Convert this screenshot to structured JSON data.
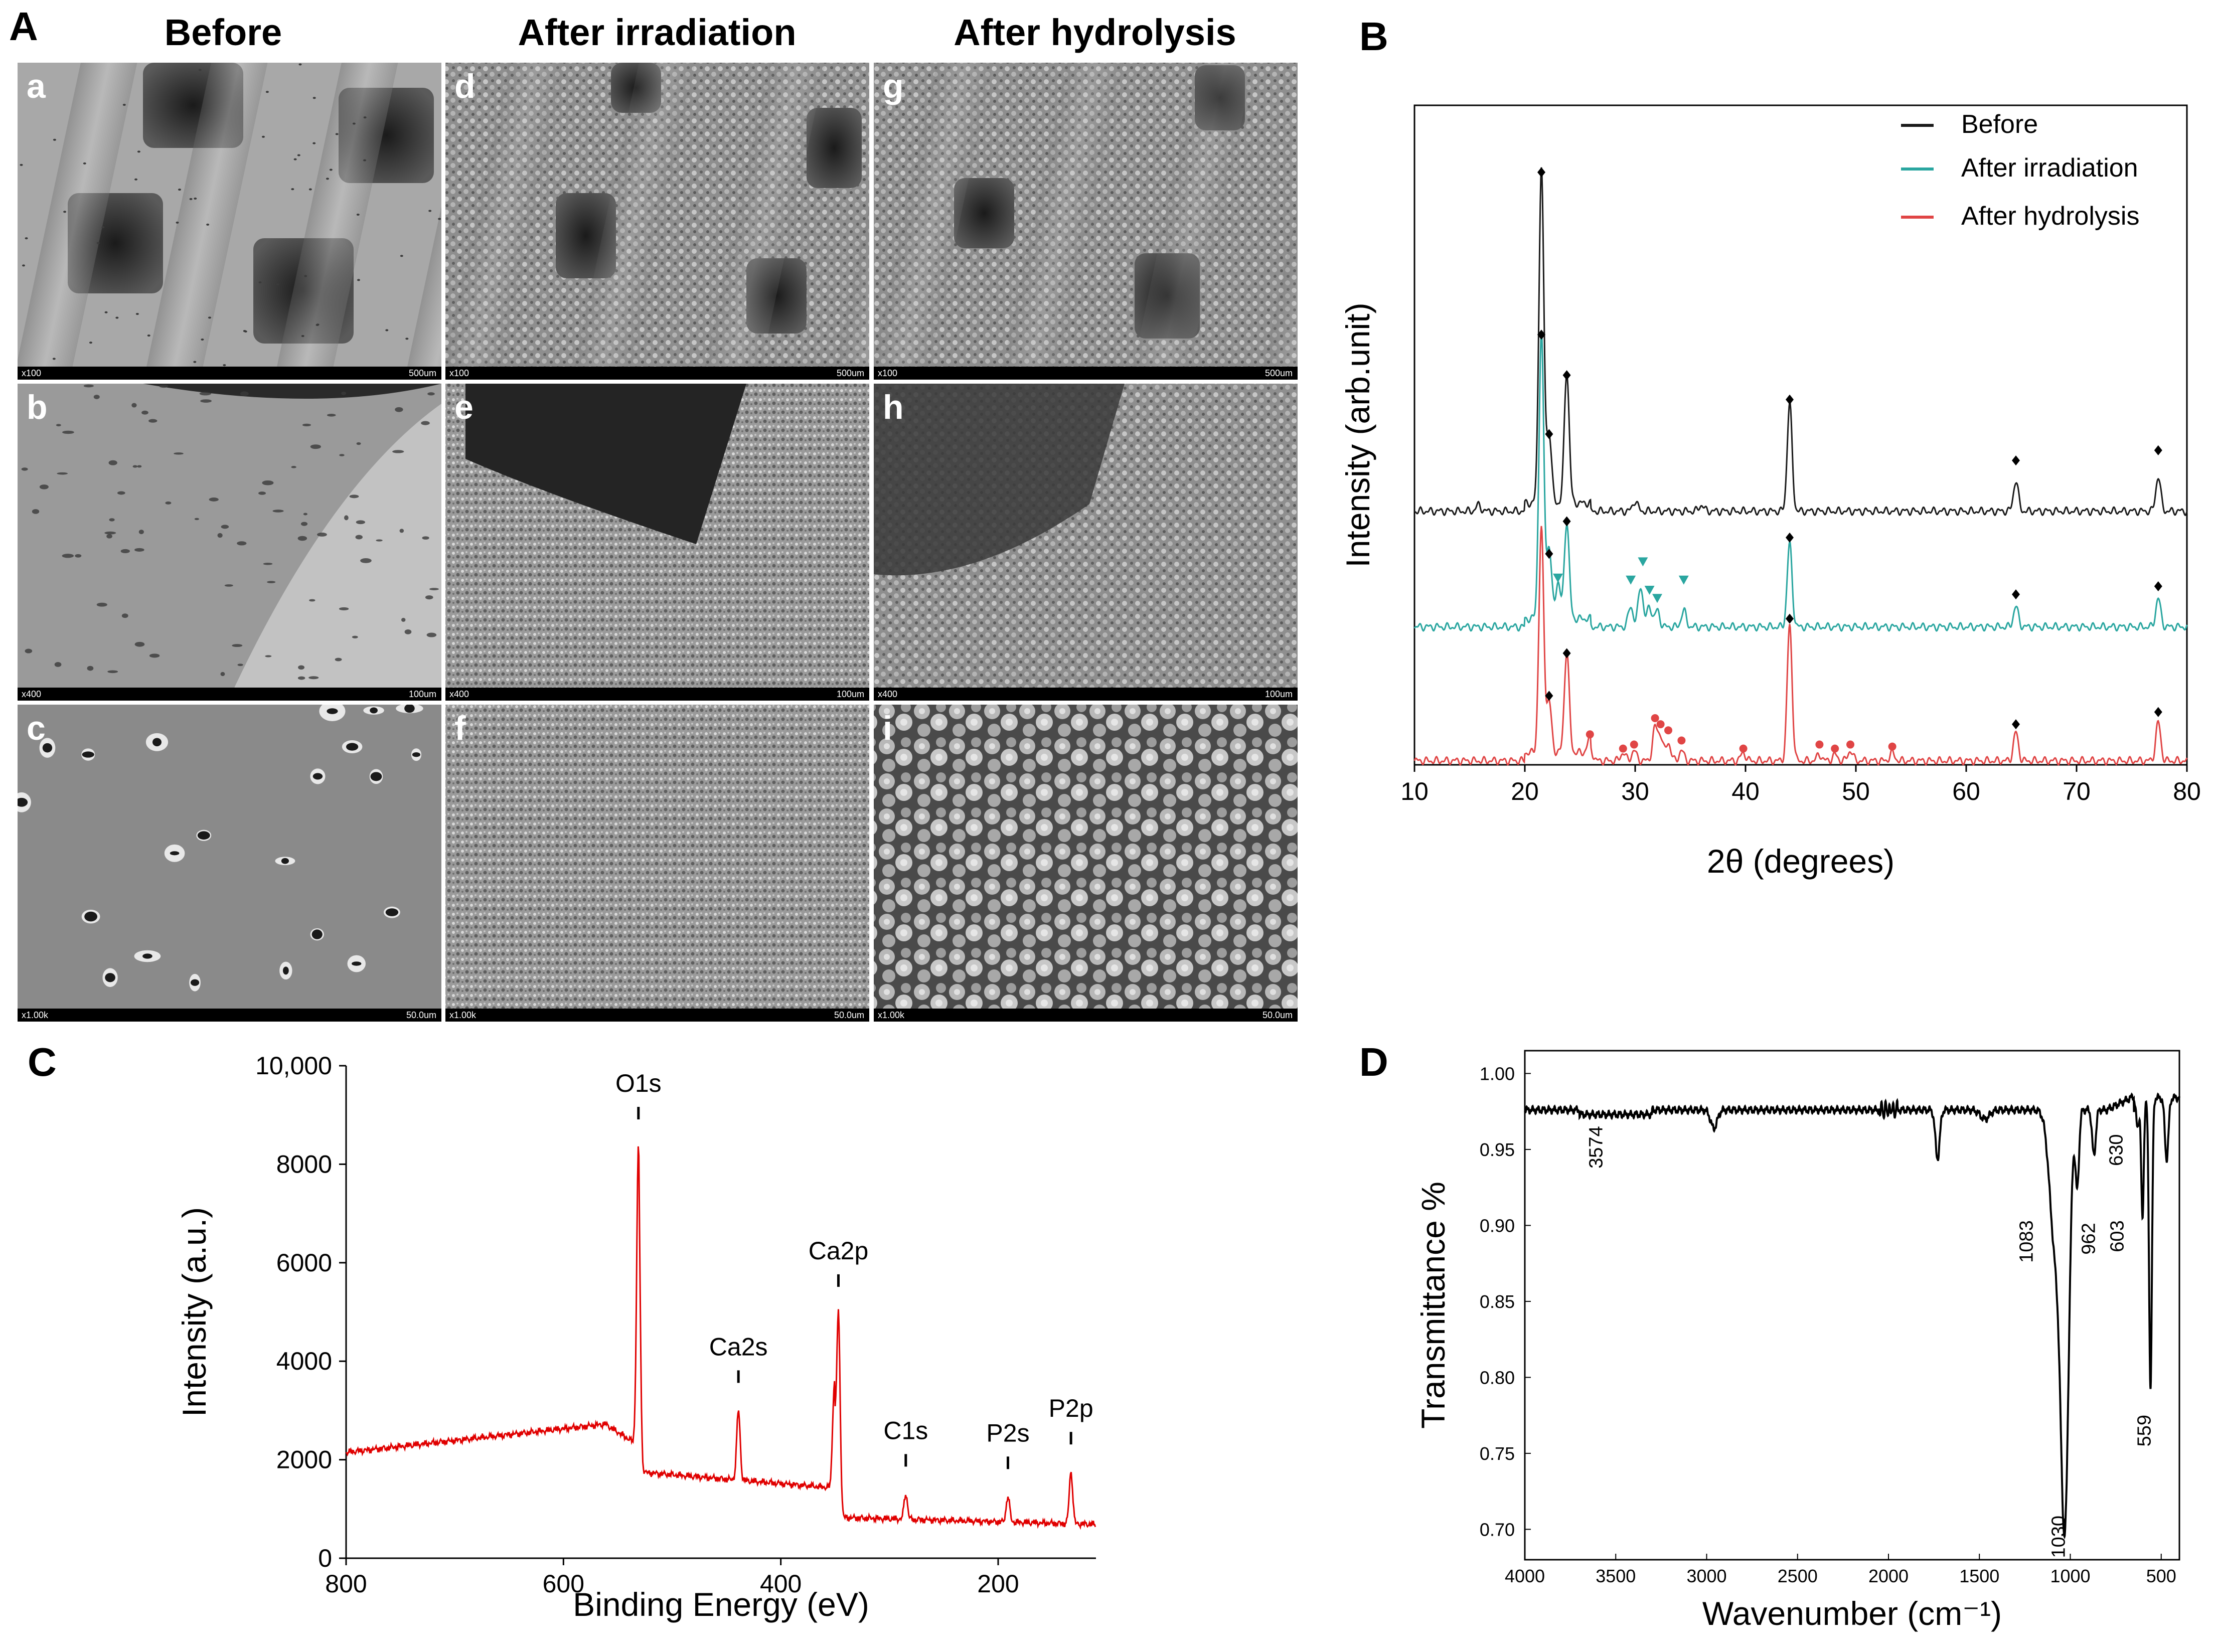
{
  "panels": {
    "A": {
      "letter": "A",
      "columns": [
        "Before",
        "After irradiation",
        "After hydrolysis"
      ],
      "tiles": [
        {
          "letter": "a",
          "mag": "x100",
          "scale": "500um"
        },
        {
          "letter": "d",
          "mag": "x100",
          "scale": "500um"
        },
        {
          "letter": "g",
          "mag": "x100",
          "scale": "500um"
        },
        {
          "letter": "b",
          "mag": "x400",
          "scale": "100um"
        },
        {
          "letter": "e",
          "mag": "x400",
          "scale": "100um"
        },
        {
          "letter": "h",
          "mag": "x400",
          "scale": "100um"
        },
        {
          "letter": "c",
          "mag": "x1.00k",
          "scale": "50.0um"
        },
        {
          "letter": "f",
          "mag": "x1.00k",
          "scale": "50.0um"
        },
        {
          "letter": "i",
          "mag": "x1.00k",
          "scale": "50.0um"
        }
      ]
    },
    "B": {
      "letter": "B"
    },
    "C": {
      "letter": "C"
    },
    "D": {
      "letter": "D"
    }
  },
  "chart_data": [
    {
      "panel": "B",
      "type": "line",
      "xlabel": "2θ (degrees)",
      "ylabel": "Intensity (arb.unit)",
      "xlim": [
        10,
        80
      ],
      "xticks": [
        10,
        20,
        30,
        40,
        50,
        60,
        70,
        80
      ],
      "ylim": [
        0,
        3.25
      ],
      "y_ticks_shown": false,
      "legend_position": "top-right",
      "series": [
        {
          "name": "Before",
          "color": "#1a1a1a",
          "offset": 1.25,
          "peaks": [
            [
              21.5,
              1.65
            ],
            [
              22.2,
              0.35
            ],
            [
              23.8,
              0.65
            ],
            [
              15.8,
              0.03
            ],
            [
              30.0,
              0.05
            ],
            [
              36.0,
              0.03
            ],
            [
              44.0,
              0.53
            ],
            [
              64.5,
              0.15
            ],
            [
              77.4,
              0.17
            ]
          ]
        },
        {
          "name": "After irradiation",
          "color": "#2aa6a0",
          "offset": 0.68,
          "peaks": [
            [
              21.5,
              1.4
            ],
            [
              22.2,
              0.35
            ],
            [
              23.0,
              0.18
            ],
            [
              23.8,
              0.48
            ],
            [
              29.6,
              0.1
            ],
            [
              30.5,
              0.2
            ],
            [
              31.3,
              0.1
            ],
            [
              32.0,
              0.08
            ],
            [
              34.4,
              0.08
            ],
            [
              44.0,
              0.41
            ],
            [
              64.5,
              0.1
            ],
            [
              77.4,
              0.14
            ]
          ]
        },
        {
          "name": "After hydrolysis",
          "color": "#e04545",
          "offset": 0.02,
          "peaks": [
            [
              21.5,
              1.1
            ],
            [
              22.2,
              0.25
            ],
            [
              23.8,
              0.5
            ],
            [
              25.9,
              0.07
            ],
            [
              28.9,
              0.04
            ],
            [
              29.9,
              0.05
            ],
            [
              31.8,
              0.16
            ],
            [
              32.3,
              0.12
            ],
            [
              33.0,
              0.09
            ],
            [
              34.2,
              0.05
            ],
            [
              39.8,
              0.04
            ],
            [
              44.0,
              0.67
            ],
            [
              46.7,
              0.03
            ],
            [
              48.1,
              0.03
            ],
            [
              49.5,
              0.05
            ],
            [
              53.3,
              0.04
            ],
            [
              64.5,
              0.14
            ],
            [
              77.4,
              0.19
            ]
          ]
        }
      ],
      "markers": [
        {
          "symbol": "diamond",
          "color": "#000000",
          "points": [
            [
              21.5,
              2.92
            ],
            [
              21.5,
              2.12
            ],
            [
              22.2,
              1.63
            ],
            [
              23.8,
              1.92
            ],
            [
              23.8,
              1.2
            ],
            [
              22.2,
              1.04
            ],
            [
              23.8,
              0.55
            ],
            [
              22.2,
              0.34
            ],
            [
              44.0,
              1.8
            ],
            [
              44.0,
              1.12
            ],
            [
              44.0,
              0.72
            ],
            [
              64.5,
              1.5
            ],
            [
              64.5,
              0.84
            ],
            [
              64.5,
              0.2
            ],
            [
              77.4,
              1.55
            ],
            [
              77.4,
              0.88
            ],
            [
              77.4,
              0.26
            ]
          ]
        },
        {
          "symbol": "triangle-down",
          "color": "#2aa6a0",
          "points": [
            [
              23.0,
              0.92
            ],
            [
              29.6,
              0.91
            ],
            [
              30.7,
              1.0
            ],
            [
              31.3,
              0.86
            ],
            [
              32.0,
              0.82
            ],
            [
              34.4,
              0.91
            ]
          ]
        },
        {
          "symbol": "circle",
          "color": "#e04545",
          "points": [
            [
              25.9,
              0.15
            ],
            [
              28.9,
              0.08
            ],
            [
              29.9,
              0.1
            ],
            [
              31.8,
              0.23
            ],
            [
              32.3,
              0.2
            ],
            [
              33.0,
              0.17
            ],
            [
              34.2,
              0.12
            ],
            [
              39.8,
              0.08
            ],
            [
              46.7,
              0.1
            ],
            [
              48.1,
              0.08
            ],
            [
              49.5,
              0.1
            ],
            [
              53.3,
              0.09
            ]
          ]
        }
      ]
    },
    {
      "panel": "C",
      "type": "line",
      "xlabel": "Binding Energy (eV)",
      "ylabel": "Intensity (a.u.)",
      "xlim": [
        800,
        110
      ],
      "ylim": [
        0,
        10000
      ],
      "xticks": [
        800,
        600,
        400,
        200
      ],
      "yticks": [
        0,
        2000,
        4000,
        6000,
        8000
      ],
      "ytick_top_label": "10,000",
      "series": [
        {
          "name": "",
          "color": "#e00000"
        }
      ],
      "peaks": [
        {
          "label": "O1s",
          "x": 531,
          "y": 8350
        },
        {
          "label": "Ca2s",
          "x": 439,
          "y": 3000
        },
        {
          "label": "Ca2p",
          "x": 347,
          "y": 4950
        },
        {
          "label": "C1s",
          "x": 285,
          "y": 1300
        },
        {
          "label": "P2s",
          "x": 191,
          "y": 1250
        },
        {
          "label": "P2p",
          "x": 133,
          "y": 1750
        }
      ]
    },
    {
      "panel": "D",
      "type": "line",
      "xlabel": "Wavenumber (cm⁻¹)",
      "ylabel": "Transmittance %",
      "xlim": [
        4000,
        400
      ],
      "ylim": [
        0.68,
        1.015
      ],
      "xticks": [
        4000,
        3500,
        3000,
        2500,
        2000,
        1500,
        1000,
        500
      ],
      "yticks": [
        0.7,
        0.75,
        0.8,
        0.85,
        0.9,
        0.95,
        1.0
      ],
      "series": [
        {
          "name": "",
          "color": "#000000"
        }
      ],
      "band_labels": [
        {
          "label": "3574",
          "x": 3574,
          "y": 0.972
        },
        {
          "label": "1083",
          "x": 1083,
          "y": 0.905
        },
        {
          "label": "962",
          "x": 962,
          "y": 0.905
        },
        {
          "label": "1030",
          "x": 1030,
          "y": 0.715
        },
        {
          "label": "630",
          "x": 630,
          "y": 0.965
        },
        {
          "label": "603",
          "x": 603,
          "y": 0.905
        },
        {
          "label": "559",
          "x": 559,
          "y": 0.782
        }
      ]
    }
  ]
}
